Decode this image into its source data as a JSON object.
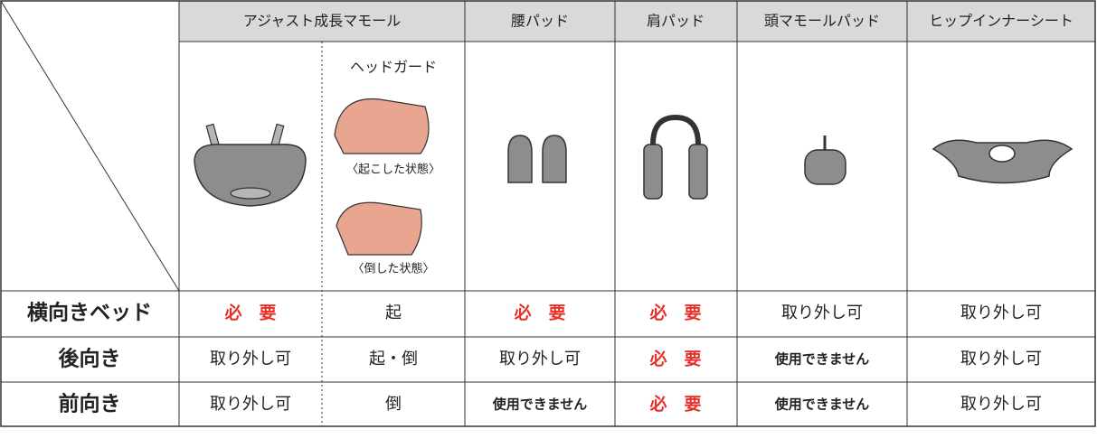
{
  "header": {
    "columns": [
      "アジャスト成長マモール",
      "腰パッド",
      "肩パッド",
      "頭マモールパッド",
      "ヒップインナーシート"
    ]
  },
  "head_guard": {
    "label": "ヘッドガード",
    "captions": [
      "〈起こした状態〉",
      "〈倒した状態〉"
    ]
  },
  "table": {
    "rows": [
      [
        "横向きベッド",
        "必　要",
        "起",
        "必　要",
        "必　要",
        "取り外し可",
        "取り外し可"
      ],
      [
        "後向き",
        "取り外し可",
        "起・倒",
        "取り外し可",
        "必　要",
        "使用できません",
        "取り外し可"
      ],
      [
        "前向き",
        "取り外し可",
        "倒",
        "使用できません",
        "必　要",
        "使用できません",
        "取り外し可"
      ]
    ]
  }
}
